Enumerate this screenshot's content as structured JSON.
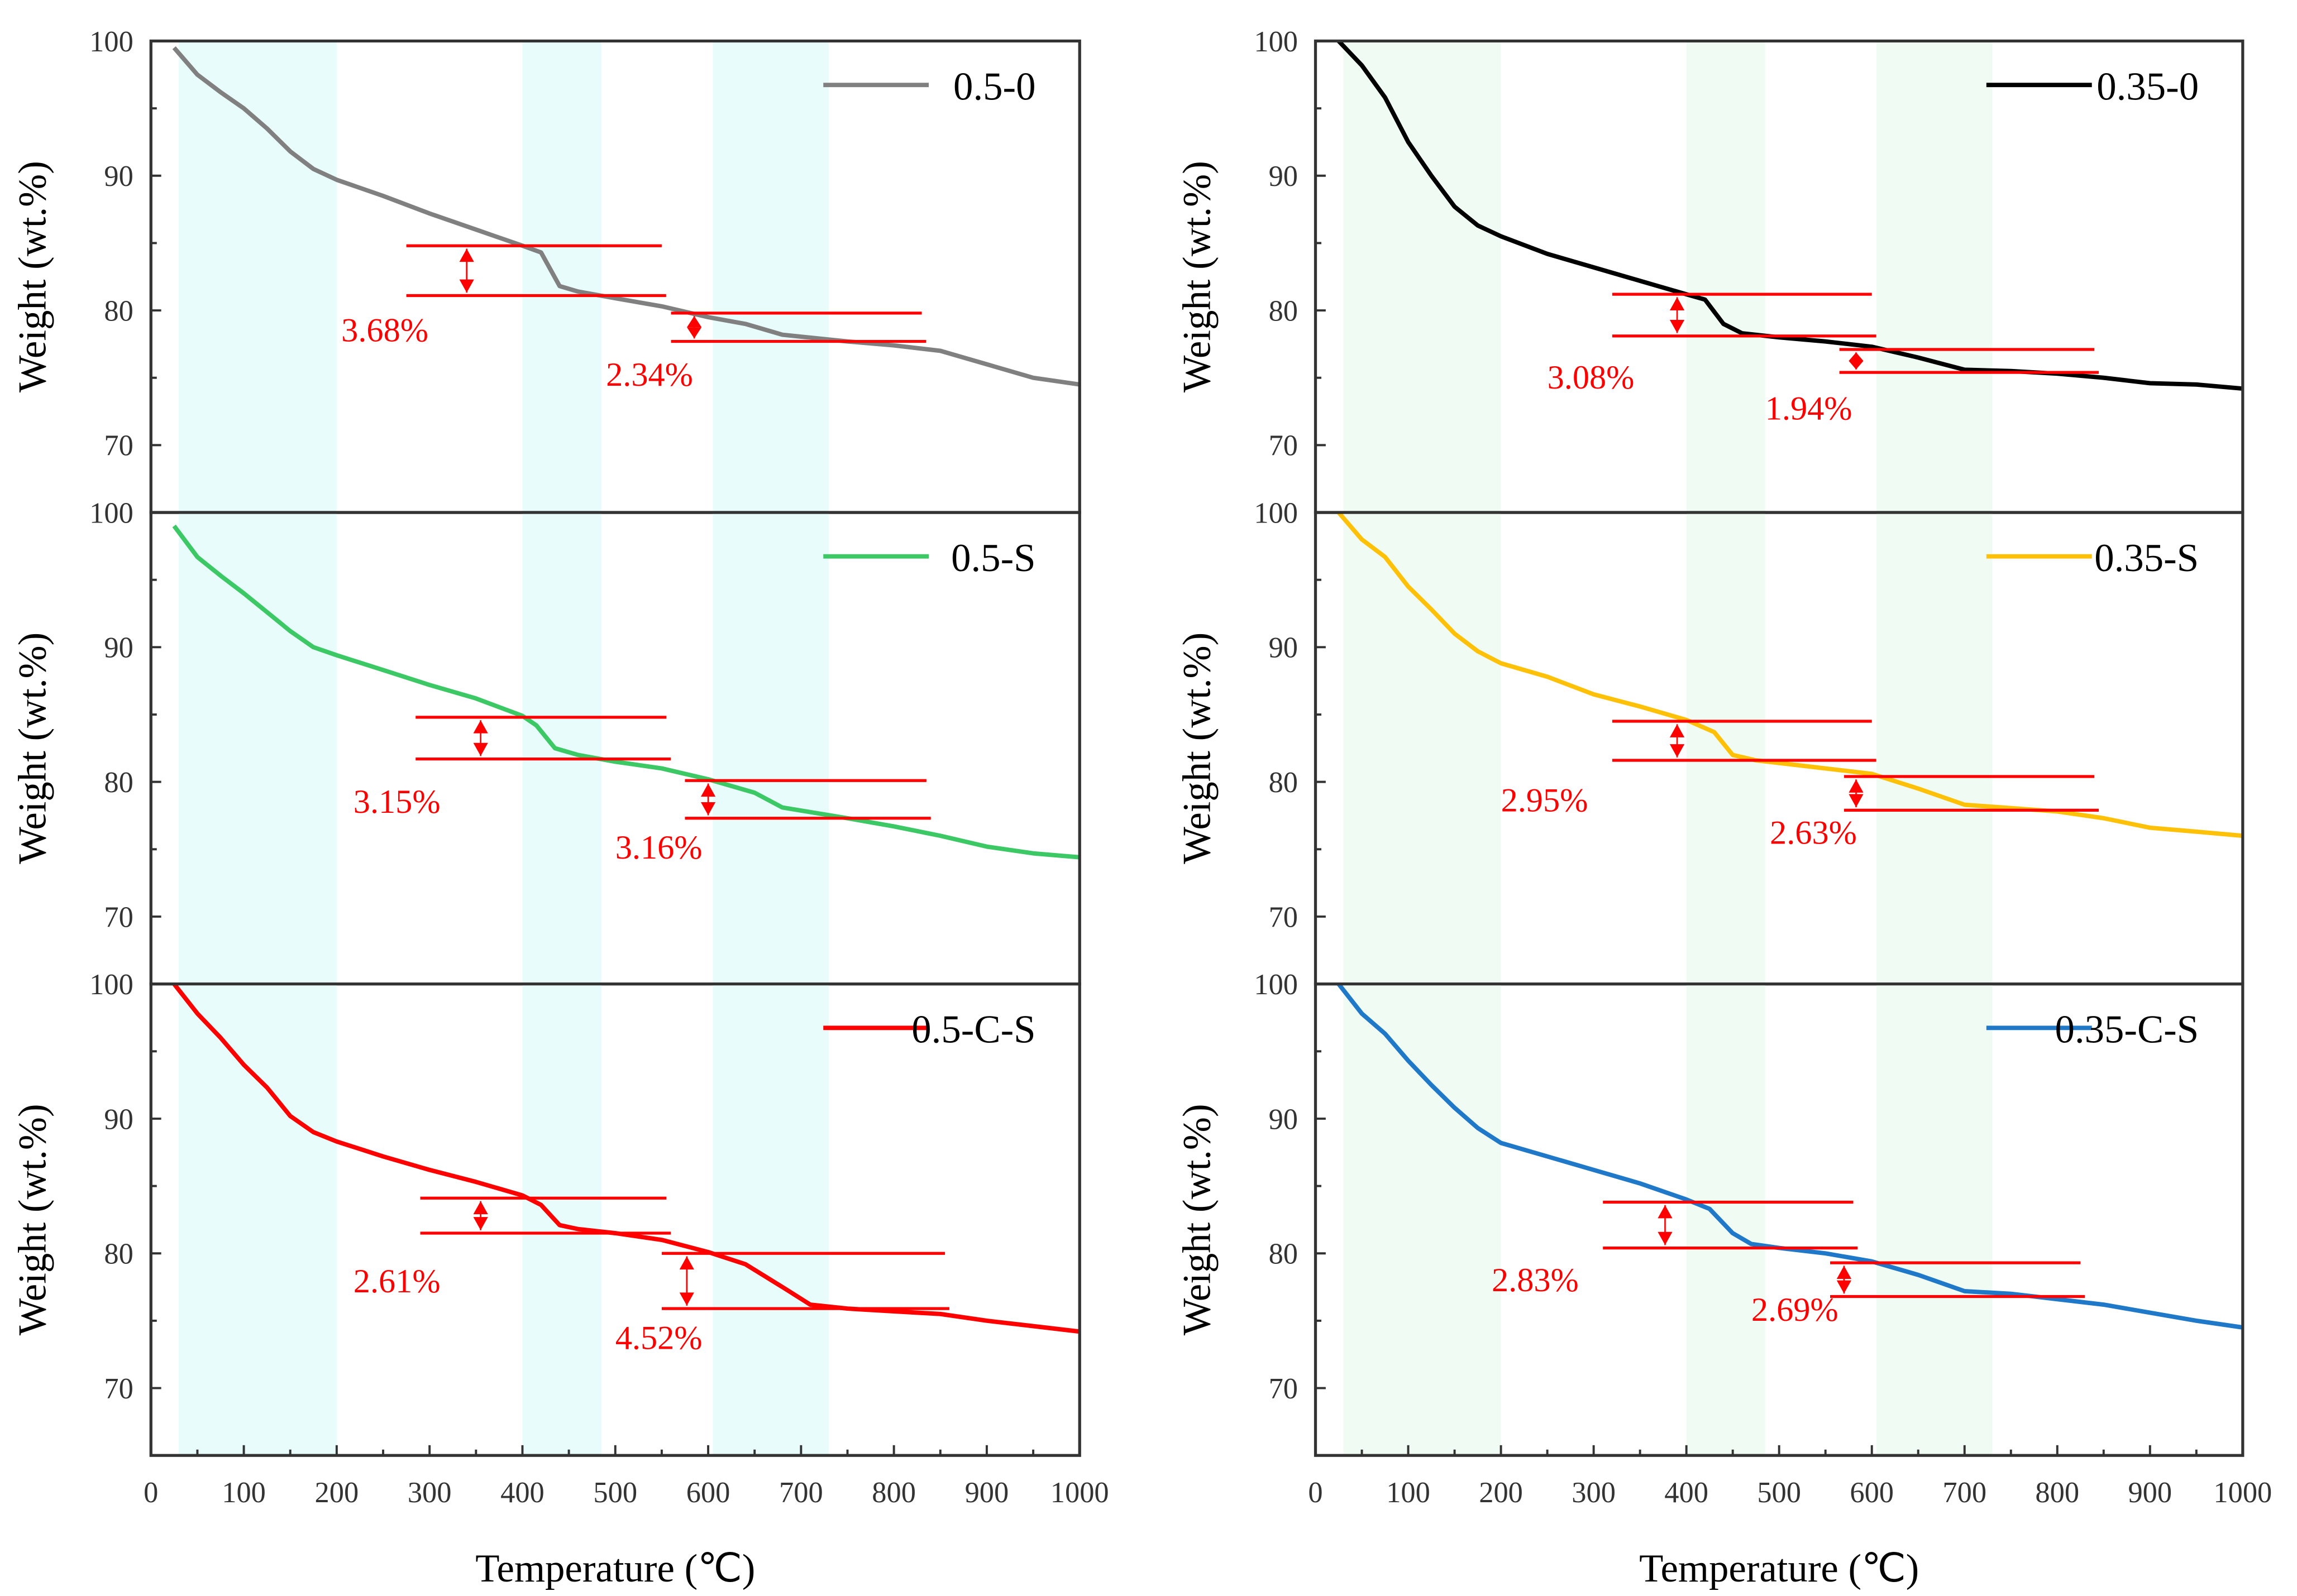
{
  "chart_data": [
    {
      "type": "line",
      "panel": "left-top",
      "name": "0.5-0",
      "color": "#808080",
      "shade": "#e8fcfc",
      "x": [
        25,
        50,
        75,
        100,
        125,
        150,
        175,
        200,
        250,
        300,
        350,
        400,
        420,
        440,
        460,
        500,
        550,
        600,
        640,
        680,
        750,
        800,
        850,
        900,
        950,
        1000
      ],
      "y": [
        99.5,
        97.5,
        96.2,
        95,
        93.5,
        91.8,
        90.5,
        89.7,
        88.5,
        87.2,
        86,
        84.8,
        84.3,
        81.8,
        81.4,
        80.9,
        80.3,
        79.5,
        79,
        78.2,
        77.7,
        77.4,
        77,
        76,
        75,
        74.5
      ],
      "annotations": [
        {
          "label": "3.68%",
          "upper": 84.8,
          "lower": 81.1,
          "from": 275,
          "to": 550,
          "arrow_at": 340,
          "label_at": [
            205,
            77.7
          ]
        },
        {
          "label": "2.34%",
          "upper": 79.8,
          "lower": 77.7,
          "from": 560,
          "to": 830,
          "arrow_at": 585,
          "label_at": [
            490,
            74.4
          ]
        }
      ]
    },
    {
      "type": "line",
      "panel": "right-top",
      "name": "0.35-0",
      "color": "#000000",
      "shade": "#f0fcf3",
      "x": [
        25,
        50,
        75,
        100,
        125,
        150,
        175,
        200,
        250,
        300,
        350,
        400,
        420,
        440,
        460,
        500,
        550,
        600,
        650,
        700,
        750,
        800,
        850,
        900,
        950,
        1000
      ],
      "y": [
        100,
        98.2,
        95.8,
        92.5,
        90,
        87.7,
        86.3,
        85.5,
        84.2,
        83.2,
        82.2,
        81.2,
        80.8,
        79,
        78.3,
        78,
        77.7,
        77.3,
        76.5,
        75.6,
        75.5,
        75.3,
        75,
        74.6,
        74.5,
        74.2
      ],
      "annotations": [
        {
          "label": "3.08%",
          "upper": 81.2,
          "lower": 78.1,
          "from": 320,
          "to": 600,
          "arrow_at": 390,
          "label_at": [
            250,
            74.2
          ]
        },
        {
          "label": "1.94%",
          "upper": 77.1,
          "lower": 75.4,
          "from": 565,
          "to": 840,
          "arrow_at": 583,
          "label_at": [
            485,
            71.9
          ]
        }
      ]
    },
    {
      "type": "line",
      "panel": "left-middle",
      "name": "0.5-S",
      "color": "#3cc864",
      "shade": "#e8fcfc",
      "x": [
        25,
        50,
        75,
        100,
        125,
        150,
        175,
        200,
        250,
        300,
        350,
        400,
        415,
        435,
        460,
        500,
        550,
        600,
        650,
        680,
        750,
        800,
        850,
        900,
        950,
        1000
      ],
      "y": [
        99,
        96.7,
        95.3,
        94,
        92.6,
        91.2,
        90,
        89.4,
        88.3,
        87.2,
        86.2,
        84.9,
        84.2,
        82.5,
        82,
        81.5,
        81,
        80.2,
        79.2,
        78.1,
        77.3,
        76.7,
        76,
        75.2,
        74.7,
        74.4
      ],
      "annotations": [
        {
          "label": "3.15%",
          "upper": 84.8,
          "lower": 81.7,
          "from": 285,
          "to": 555,
          "arrow_at": 355,
          "label_at": [
            218,
            77.7
          ]
        },
        {
          "label": "3.16%",
          "upper": 80.1,
          "lower": 77.3,
          "from": 575,
          "to": 835,
          "arrow_at": 600,
          "label_at": [
            500,
            74.3
          ]
        }
      ]
    },
    {
      "type": "line",
      "panel": "right-middle",
      "name": "0.35-S",
      "color": "#ffc107",
      "shade": "#f0fcf3",
      "x": [
        25,
        50,
        75,
        100,
        125,
        150,
        175,
        200,
        250,
        300,
        350,
        400,
        430,
        450,
        475,
        500,
        600,
        650,
        700,
        800,
        850,
        900,
        950,
        1000
      ],
      "y": [
        100,
        98,
        96.7,
        94.5,
        92.8,
        91,
        89.7,
        88.8,
        87.8,
        86.5,
        85.6,
        84.6,
        83.7,
        82,
        81.6,
        81.4,
        80.6,
        79.5,
        78.3,
        77.8,
        77.3,
        76.6,
        76.3,
        76
      ],
      "annotations": [
        {
          "label": "2.95%",
          "upper": 84.5,
          "lower": 81.6,
          "from": 320,
          "to": 600,
          "arrow_at": 390,
          "label_at": [
            200,
            77.8
          ]
        },
        {
          "label": "2.63%",
          "upper": 80.4,
          "lower": 77.9,
          "from": 570,
          "to": 840,
          "arrow_at": 583,
          "label_at": [
            490,
            75.4
          ]
        }
      ]
    },
    {
      "type": "line",
      "panel": "left-bottom",
      "name": "0.5-C-S",
      "color": "#ff0000",
      "shade": "#e8fcfc",
      "x": [
        25,
        50,
        75,
        100,
        125,
        150,
        175,
        200,
        250,
        300,
        350,
        400,
        420,
        440,
        460,
        500,
        550,
        600,
        640,
        680,
        710,
        750,
        800,
        850,
        900,
        950,
        1000
      ],
      "y": [
        100,
        97.8,
        96,
        94,
        92.3,
        90.2,
        89,
        88.3,
        87.2,
        86.2,
        85.3,
        84.3,
        83.6,
        82.1,
        81.8,
        81.5,
        81,
        80.1,
        79.2,
        77.5,
        76.2,
        75.9,
        75.7,
        75.5,
        75,
        74.6,
        74.2
      ],
      "annotations": [
        {
          "label": "2.61%",
          "upper": 84.1,
          "lower": 81.5,
          "from": 290,
          "to": 555,
          "arrow_at": 355,
          "label_at": [
            218,
            77.1
          ]
        },
        {
          "label": "4.52%",
          "upper": 80.0,
          "lower": 75.9,
          "from": 550,
          "to": 855,
          "arrow_at": 577,
          "label_at": [
            500,
            72.9
          ]
        }
      ]
    },
    {
      "type": "line",
      "panel": "right-bottom",
      "name": "0.35-C-S",
      "color": "#1f78c8",
      "shade": "#f0fcf3",
      "x": [
        25,
        50,
        75,
        100,
        125,
        150,
        175,
        200,
        250,
        300,
        350,
        400,
        425,
        450,
        470,
        500,
        550,
        600,
        650,
        700,
        750,
        800,
        850,
        900,
        950,
        1000
      ],
      "y": [
        100,
        97.8,
        96.3,
        94.3,
        92.5,
        90.8,
        89.3,
        88.2,
        87.2,
        86.2,
        85.2,
        84,
        83.3,
        81.5,
        80.7,
        80.4,
        80,
        79.4,
        78.4,
        77.2,
        77,
        76.6,
        76.2,
        75.6,
        75,
        74.5
      ],
      "annotations": [
        {
          "label": "2.83%",
          "upper": 83.8,
          "lower": 80.4,
          "from": 310,
          "to": 580,
          "arrow_at": 377,
          "label_at": [
            190,
            77.2
          ]
        },
        {
          "label": "2.69%",
          "upper": 79.3,
          "lower": 76.8,
          "from": 555,
          "to": 825,
          "arrow_at": 570,
          "label_at": [
            470,
            75.0
          ]
        }
      ]
    }
  ],
  "shaded_ranges": [
    [
      30,
      200
    ],
    [
      400,
      485
    ],
    [
      605,
      730
    ]
  ],
  "xlim": [
    0,
    1000
  ],
  "ylim": [
    65,
    100
  ],
  "xticks": [
    "0",
    "100",
    "200",
    "300",
    "400",
    "500",
    "600",
    "700",
    "800",
    "900",
    "1000"
  ],
  "yticks": [
    "70",
    "80",
    "90",
    "100"
  ],
  "xlabel": "Temperature (℃)",
  "ylabel": "Weight (wt.%)"
}
